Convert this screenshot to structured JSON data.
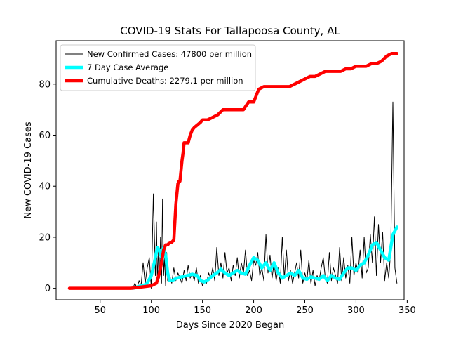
{
  "chart_data": {
    "type": "line",
    "title": "COVID-19 Stats For Tallapoosa County, AL",
    "xlabel": "Days Since 2020 Began",
    "ylabel": "New COVID-19 Cases",
    "xlim": [
      7,
      347
    ],
    "ylim": [
      -4.5,
      97
    ],
    "xticks": [
      50,
      100,
      150,
      200,
      250,
      300,
      350
    ],
    "yticks": [
      0,
      20,
      40,
      60,
      80
    ],
    "grid": false,
    "legend_position": "top-left",
    "series": [
      {
        "name": "New Confirmed Cases: 47800 per million",
        "color": "#000000",
        "style": "thin-line",
        "x": [
          82,
          84,
          86,
          88,
          90,
          92,
          94,
          96,
          98,
          100,
          102,
          104,
          105,
          106,
          107,
          108,
          109,
          110,
          111,
          112,
          113,
          114,
          115,
          116,
          118,
          120,
          122,
          124,
          126,
          128,
          130,
          132,
          134,
          136,
          138,
          140,
          142,
          144,
          146,
          148,
          150,
          152,
          154,
          156,
          158,
          160,
          162,
          164,
          166,
          168,
          170,
          172,
          174,
          176,
          178,
          180,
          182,
          184,
          186,
          188,
          190,
          192,
          194,
          196,
          198,
          200,
          202,
          204,
          206,
          208,
          210,
          212,
          214,
          216,
          218,
          220,
          222,
          224,
          226,
          228,
          230,
          232,
          234,
          236,
          238,
          240,
          242,
          244,
          246,
          248,
          250,
          252,
          254,
          256,
          258,
          260,
          262,
          264,
          266,
          268,
          270,
          272,
          274,
          276,
          278,
          280,
          282,
          284,
          286,
          288,
          290,
          292,
          294,
          296,
          298,
          300,
          302,
          304,
          306,
          308,
          310,
          312,
          314,
          316,
          318,
          320,
          322,
          324,
          326,
          328,
          330,
          332,
          334,
          336,
          338,
          340
        ],
        "values": [
          0,
          2,
          0,
          3,
          1,
          10,
          2,
          8,
          12,
          0,
          37,
          5,
          26,
          3,
          15,
          4,
          20,
          2,
          35,
          5,
          12,
          1,
          14,
          3,
          5,
          2,
          8,
          3,
          6,
          4,
          2,
          7,
          3,
          9,
          4,
          6,
          3,
          8,
          2,
          5,
          1,
          3,
          2,
          6,
          4,
          8,
          3,
          16,
          5,
          10,
          4,
          14,
          6,
          8,
          3,
          9,
          5,
          12,
          4,
          10,
          6,
          15,
          5,
          7,
          3,
          11,
          9,
          14,
          5,
          8,
          3,
          21,
          6,
          13,
          4,
          10,
          3,
          8,
          2,
          20,
          4,
          15,
          3,
          7,
          2,
          6,
          10,
          4,
          15,
          2,
          6,
          3,
          11,
          2,
          7,
          1,
          5,
          3,
          8,
          12,
          4,
          2,
          14,
          3,
          8,
          5,
          2,
          16,
          3,
          12,
          4,
          9,
          2,
          20,
          5,
          10,
          6,
          15,
          4,
          20,
          6,
          8,
          21,
          10,
          28,
          5,
          25,
          10,
          22,
          3,
          10,
          4,
          15,
          73,
          8,
          2
        ]
      },
      {
        "name": "7 Day Case Average",
        "color": "#00ffff",
        "style": "thick-line",
        "x": [
          82,
          90,
          95,
          100,
          104,
          106,
          108,
          110,
          112,
          114,
          116,
          118,
          120,
          125,
          130,
          135,
          140,
          145,
          148,
          152,
          156,
          160,
          164,
          168,
          172,
          176,
          180,
          184,
          188,
          192,
          196,
          200,
          204,
          208,
          212,
          216,
          220,
          224,
          228,
          232,
          236,
          240,
          244,
          248,
          252,
          256,
          260,
          264,
          268,
          272,
          276,
          280,
          284,
          288,
          292,
          296,
          300,
          304,
          308,
          312,
          316,
          320,
          324,
          328,
          332,
          336,
          340
        ],
        "values": [
          0,
          1,
          1.5,
          5,
          12,
          16,
          15,
          12,
          16,
          13,
          6,
          3,
          3,
          4,
          4.5,
          5,
          5.5,
          5,
          3,
          2.5,
          3.5,
          5,
          6,
          7.5,
          6,
          5,
          6,
          7,
          6,
          5.5,
          9,
          12,
          11,
          8,
          10,
          7,
          10,
          6,
          4,
          5,
          6,
          5,
          7,
          4,
          3.5,
          4.5,
          4,
          3.5,
          5,
          3,
          5,
          4,
          3.5,
          6,
          8,
          8,
          7,
          9,
          10,
          13,
          17,
          18,
          15,
          12,
          11,
          21,
          24
        ]
      },
      {
        "name": "Cumulative Deaths: 2279.1 per million",
        "color": "#ff0000",
        "style": "thick-line",
        "x": [
          20,
          80,
          100,
          105,
          108,
          110,
          112,
          114,
          116,
          118,
          120,
          122,
          124,
          126,
          127,
          128,
          130,
          131,
          132,
          133,
          134,
          135,
          136,
          138,
          140,
          142,
          145,
          148,
          150,
          155,
          160,
          165,
          170,
          180,
          190,
          195,
          200,
          205,
          210,
          215,
          220,
          225,
          230,
          235,
          240,
          245,
          250,
          255,
          260,
          265,
          270,
          280,
          285,
          290,
          295,
          300,
          305,
          310,
          315,
          320,
          325,
          330,
          335,
          340
        ],
        "values": [
          0,
          0,
          1,
          2,
          6,
          10,
          15,
          17,
          17,
          18,
          18,
          19,
          33,
          41,
          42,
          42,
          50,
          53,
          57,
          57,
          57,
          57,
          57,
          60,
          62,
          63,
          64,
          65,
          66,
          66,
          67,
          68,
          70,
          70,
          70,
          73,
          73,
          78,
          79,
          79,
          79,
          79,
          79,
          79,
          80,
          81,
          82,
          83,
          83,
          84,
          85,
          85,
          85,
          86,
          86,
          87,
          87,
          87,
          88,
          88,
          89,
          91,
          92,
          92
        ]
      }
    ]
  }
}
